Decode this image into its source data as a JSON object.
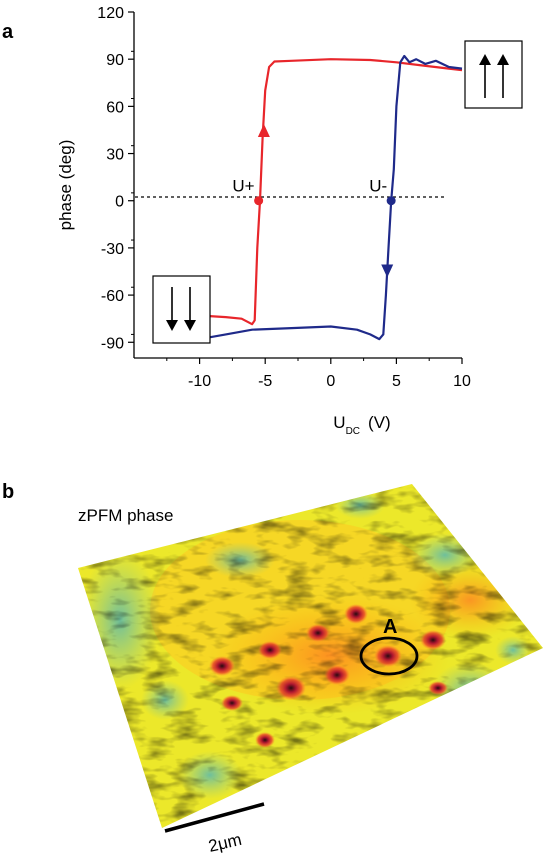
{
  "panel_a_label": "a",
  "panel_b_label": "b",
  "map_title": "zPFM phase",
  "scale_bar_label": "2μm",
  "marker_label": "A",
  "colors": {
    "forward": "#e8262b",
    "reverse": "#1f2a8a"
  },
  "chart_data": {
    "type": "line",
    "title": "",
    "xlabel": {
      "main": "U",
      "sub": "DC",
      "unit": "(V)"
    },
    "ylabel": "phase (deg)",
    "xlim": [
      -15,
      10
    ],
    "ylim": [
      -100,
      120
    ],
    "xticks": [
      -10,
      -5,
      0,
      5,
      10
    ],
    "yticks": [
      120,
      90,
      60,
      30,
      0,
      -30,
      -60,
      -90
    ],
    "zero_line": "dotted",
    "series": [
      {
        "color": "#e8262b",
        "direction": "up",
        "points": [
          [
            -10,
            -73
          ],
          [
            -8,
            -74
          ],
          [
            -6.8,
            -75
          ],
          [
            -6,
            -78.5
          ],
          [
            -5.8,
            -76
          ],
          [
            -5.6,
            -30
          ],
          [
            -5.4,
            0
          ],
          [
            -5.2,
            40
          ],
          [
            -5,
            70
          ],
          [
            -4.7,
            85
          ],
          [
            -4.3,
            88.5
          ],
          [
            -3,
            89
          ],
          [
            0,
            90
          ],
          [
            3,
            89.5
          ],
          [
            5,
            88
          ],
          [
            7,
            86
          ],
          [
            9,
            84
          ],
          [
            10,
            83
          ]
        ]
      },
      {
        "color": "#1f2a8a",
        "direction": "down",
        "points": [
          [
            10,
            84
          ],
          [
            9,
            85
          ],
          [
            8,
            89
          ],
          [
            7.2,
            87
          ],
          [
            6.5,
            90
          ],
          [
            6,
            88
          ],
          [
            5.6,
            92
          ],
          [
            5.3,
            88
          ],
          [
            5,
            60
          ],
          [
            4.8,
            20
          ],
          [
            4.6,
            0
          ],
          [
            4.4,
            -30
          ],
          [
            4.2,
            -60
          ],
          [
            4,
            -85
          ],
          [
            3.7,
            -88
          ],
          [
            3,
            -85
          ],
          [
            2,
            -82
          ],
          [
            0,
            -80
          ],
          [
            -3,
            -81
          ],
          [
            -6,
            -82
          ],
          [
            -8,
            -85
          ],
          [
            -10,
            -88
          ]
        ]
      }
    ],
    "annotations": [
      {
        "text": "U+",
        "x": -5.5,
        "y": 0,
        "marker_color": "#e8262b"
      },
      {
        "text": "U-",
        "x": 4.6,
        "y": 0,
        "marker_color": "#1f2a8a"
      }
    ],
    "insets": [
      {
        "symbol": "up-up-arrows",
        "location": "top-right"
      },
      {
        "symbol": "down-down-arrows",
        "location": "bottom-left"
      }
    ]
  }
}
